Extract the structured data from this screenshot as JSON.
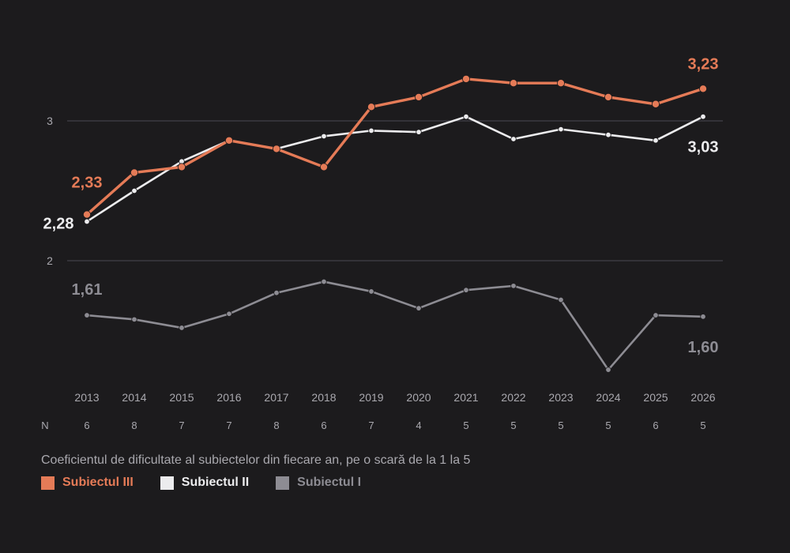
{
  "colors": {
    "s3": "#e57b57",
    "s2": "#ececee",
    "s1": "#8d8c93",
    "grid": "#4a4a52",
    "text": "#a9a8ae"
  },
  "caption": "Coeficientul de dificultate al subiectelor din fiecare an, pe o scară de la 1 la 5",
  "n_row": {
    "label": "N",
    "values": [
      "6",
      "8",
      "7",
      "7",
      "8",
      "6",
      "7",
      "4",
      "5",
      "5",
      "5",
      "5",
      "6",
      "5"
    ]
  },
  "chart_data": {
    "type": "line",
    "x": [
      "2013",
      "2014",
      "2015",
      "2016",
      "2017",
      "2018",
      "2019",
      "2020",
      "2021",
      "2022",
      "2023",
      "2024",
      "2025",
      "2026"
    ],
    "y_ticks": [
      "3",
      "2"
    ],
    "y_tick_values": [
      3,
      2
    ],
    "ylim": [
      1.1,
      3.4
    ],
    "grid": true,
    "legend_position": "bottom-left",
    "series": [
      {
        "name": "Subiectul III",
        "color": "#e57b57",
        "values": [
          2.33,
          2.63,
          2.67,
          2.86,
          2.8,
          2.67,
          3.1,
          3.17,
          3.3,
          3.27,
          3.27,
          3.17,
          3.12,
          3.23
        ],
        "start_label": "2,33",
        "end_label": "3,23"
      },
      {
        "name": "Subiectul II",
        "color": "#ececee",
        "values": [
          2.28,
          2.5,
          2.71,
          2.86,
          2.8,
          2.89,
          2.93,
          2.92,
          3.03,
          2.87,
          2.94,
          2.9,
          2.86,
          3.03
        ],
        "start_label": "2,28",
        "end_label": "3,03"
      },
      {
        "name": "Subiectul I",
        "color": "#8d8c93",
        "values": [
          1.61,
          1.58,
          1.52,
          1.62,
          1.77,
          1.85,
          1.78,
          1.66,
          1.79,
          1.82,
          1.72,
          1.22,
          1.61,
          1.6
        ],
        "start_label": "1,61",
        "end_label": "1,60"
      }
    ]
  }
}
